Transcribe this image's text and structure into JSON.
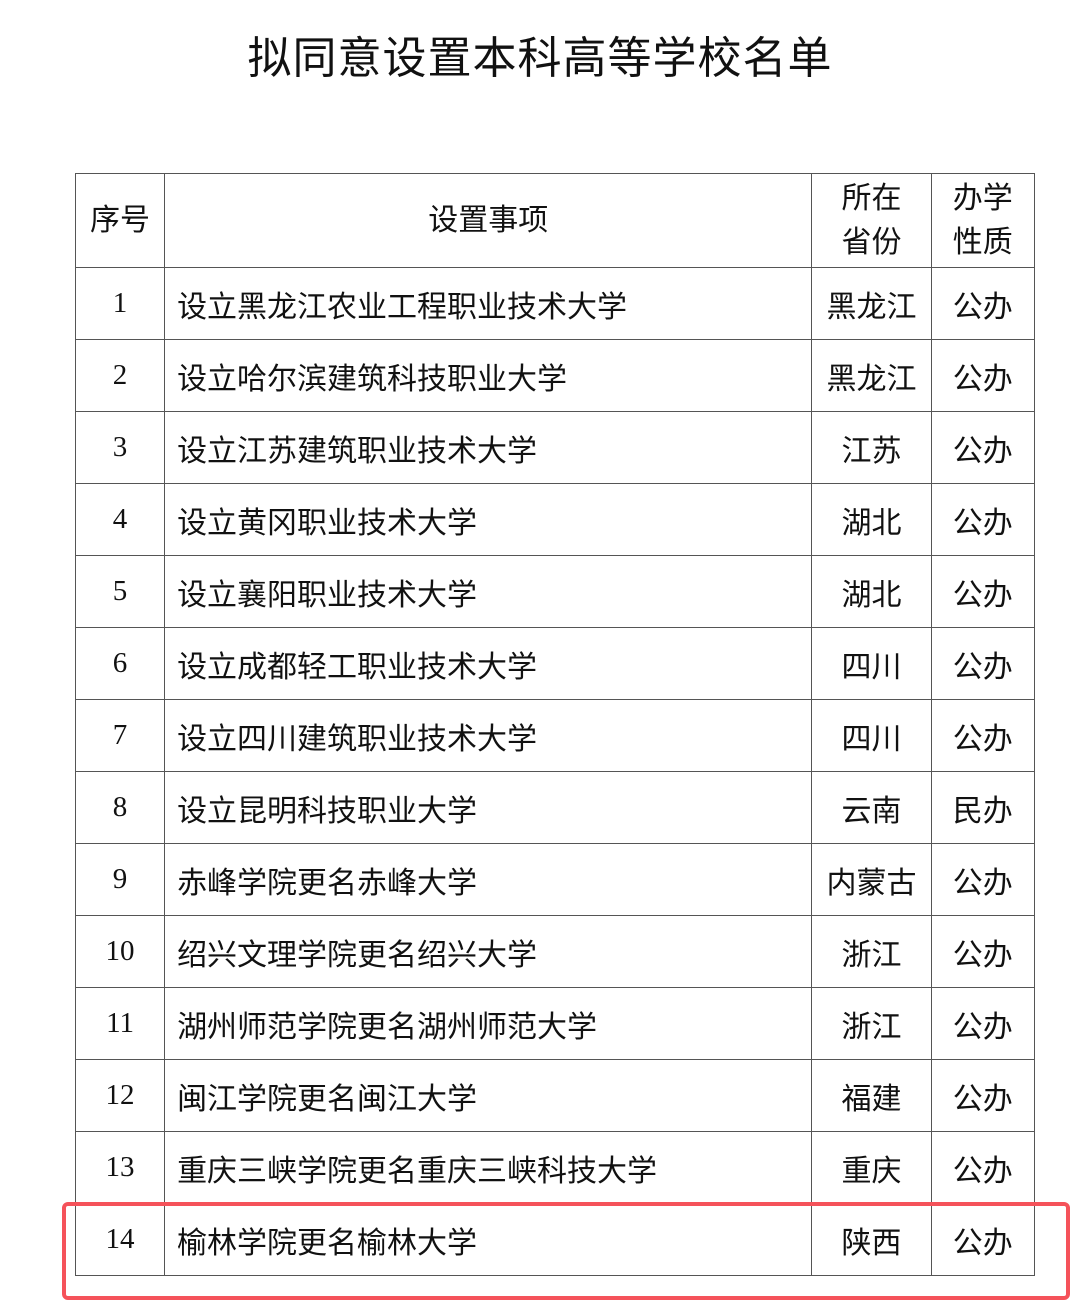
{
  "title": "拟同意设置本科高等学校名单",
  "table": {
    "headers": [
      "序号",
      "设置事项",
      "所在省份",
      "办学性质"
    ],
    "rows": [
      [
        "1",
        "设立黑龙江农业工程职业技术大学",
        "黑龙江",
        "公办"
      ],
      [
        "2",
        "设立哈尔滨建筑科技职业大学",
        "黑龙江",
        "公办"
      ],
      [
        "3",
        "设立江苏建筑职业技术大学",
        "江苏",
        "公办"
      ],
      [
        "4",
        "设立黄冈职业技术大学",
        "湖北",
        "公办"
      ],
      [
        "5",
        "设立襄阳职业技术大学",
        "湖北",
        "公办"
      ],
      [
        "6",
        "设立成都轻工职业技术大学",
        "四川",
        "公办"
      ],
      [
        "7",
        "设立四川建筑职业技术大学",
        "四川",
        "公办"
      ],
      [
        "8",
        "设立昆明科技职业大学",
        "云南",
        "民办"
      ],
      [
        "9",
        "赤峰学院更名赤峰大学",
        "内蒙古",
        "公办"
      ],
      [
        "10",
        "绍兴文理学院更名绍兴大学",
        "浙江",
        "公办"
      ],
      [
        "11",
        "湖州师范学院更名湖州师范大学",
        "浙江",
        "公办"
      ],
      [
        "12",
        "闽江学院更名闽江大学",
        "福建",
        "公办"
      ],
      [
        "13",
        "重庆三峡学院更名重庆三峡科技大学",
        "重庆",
        "公办"
      ],
      [
        "14",
        "榆林学院更名榆林大学",
        "陕西",
        "公办"
      ]
    ]
  },
  "highlight": {
    "row": "14",
    "color": "#f5525a"
  }
}
